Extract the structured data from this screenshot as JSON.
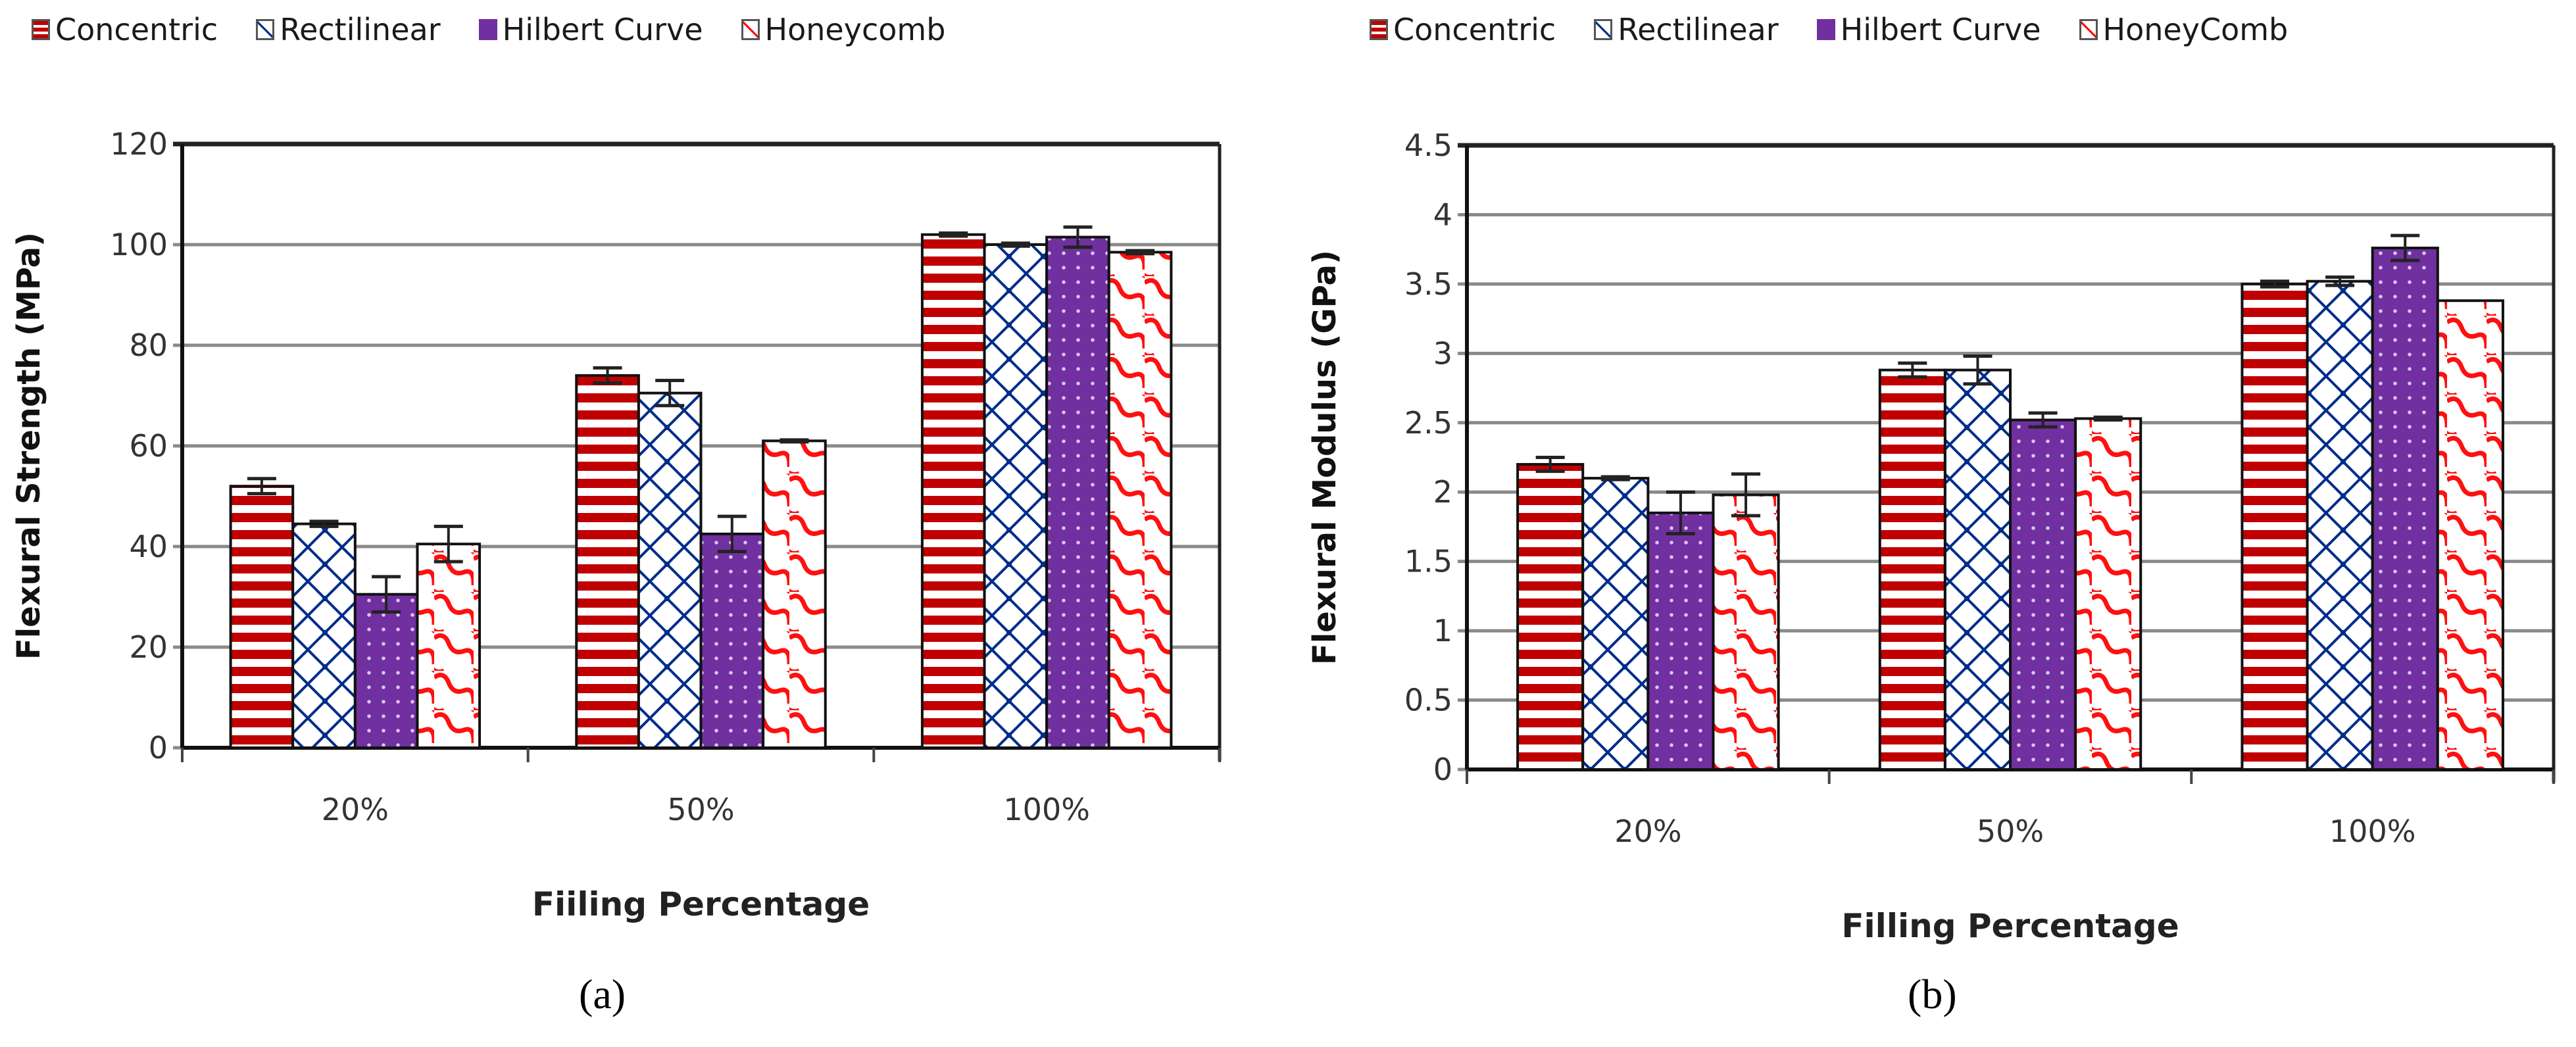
{
  "figure": {
    "panel_labels": [
      "(a)",
      "(b)"
    ]
  },
  "series_styles": [
    {
      "name": "Concentric",
      "pattern": "horizontal-stripes",
      "color": "#C00000"
    },
    {
      "name": "Rectilinear",
      "pattern": "diagonal-crosshatch",
      "color": "#002D8A"
    },
    {
      "name": "Hilbert Curve",
      "pattern": "dotted",
      "color": "#7030A0"
    },
    {
      "name": "Honeycomb",
      "pattern": "zigzag",
      "color": "#FF1010"
    }
  ],
  "chart_data": [
    {
      "type": "bar",
      "title": "",
      "legend": [
        "Concentric",
        "Rectilinear",
        "Hilbert Curve",
        "Honeycomb"
      ],
      "legend_position": "top",
      "xlabel": "Fiiling Percentage",
      "ylabel": "Flexural Strength (MPa)",
      "categories": [
        "20%",
        "50%",
        "100%"
      ],
      "ylim": [
        0,
        120
      ],
      "yticks": [
        0,
        20,
        40,
        60,
        80,
        100,
        120
      ],
      "grid": true,
      "series": [
        {
          "name": "Concentric",
          "values": [
            52,
            74,
            102
          ],
          "errors": [
            1.5,
            1.5,
            0.3
          ]
        },
        {
          "name": "Rectilinear",
          "values": [
            44.5,
            70.5,
            100
          ],
          "errors": [
            0.5,
            2.5,
            0.3
          ]
        },
        {
          "name": "Hilbert Curve",
          "values": [
            30.5,
            42.5,
            101.5
          ],
          "errors": [
            3.5,
            3.5,
            2
          ]
        },
        {
          "name": "Honeycomb",
          "values": [
            40.5,
            61,
            98.5
          ],
          "errors": [
            3.5,
            0.2,
            0.3
          ]
        }
      ]
    },
    {
      "type": "bar",
      "title": "",
      "legend": [
        "Concentric",
        "Rectilinear",
        "Hilbert Curve",
        "HoneyComb"
      ],
      "legend_position": "top",
      "xlabel": "Filling Percentage",
      "ylabel": "Flexural Modulus (GPa)",
      "categories": [
        "20%",
        "50%",
        "100%"
      ],
      "ylim": [
        0,
        4.5
      ],
      "yticks": [
        0,
        0.5,
        1,
        1.5,
        2,
        2.5,
        3,
        3.5,
        4,
        4.5
      ],
      "grid": true,
      "series": [
        {
          "name": "Concentric",
          "values": [
            2.2,
            2.88,
            3.5
          ],
          "errors": [
            0.05,
            0.05,
            0.02
          ]
        },
        {
          "name": "Rectilinear",
          "values": [
            2.1,
            2.88,
            3.52
          ],
          "errors": [
            0.01,
            0.1,
            0.03
          ]
        },
        {
          "name": "Hilbert Curve",
          "values": [
            1.85,
            2.52,
            3.76
          ],
          "errors": [
            0.15,
            0.05,
            0.09
          ]
        },
        {
          "name": "HoneyComb",
          "values": [
            1.98,
            2.53,
            3.38
          ],
          "errors": [
            0.15,
            0.01,
            0.0
          ]
        }
      ]
    }
  ]
}
